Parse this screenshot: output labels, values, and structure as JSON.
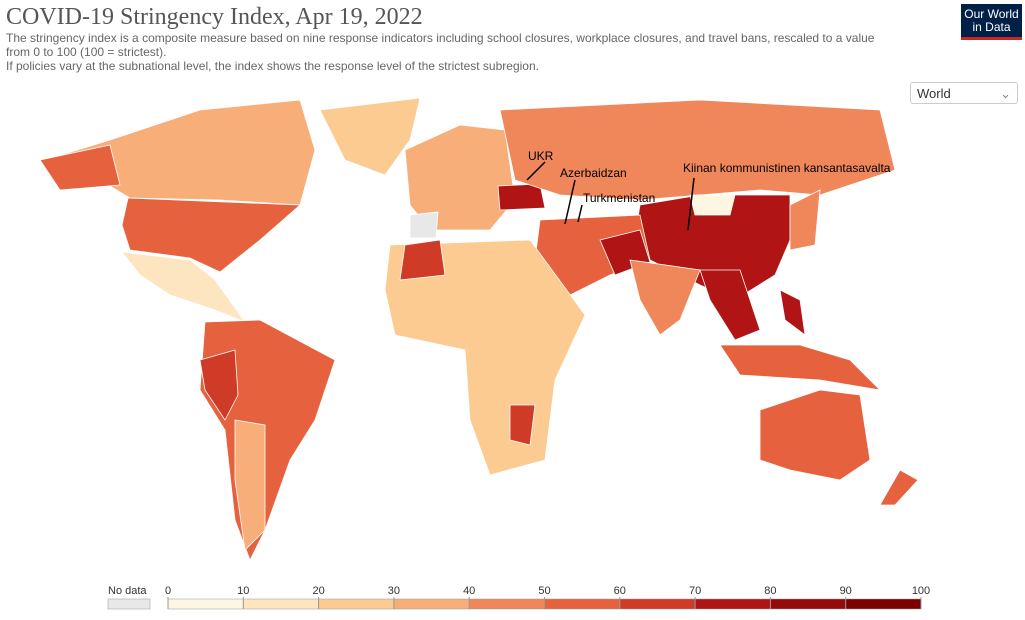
{
  "header": {
    "title": "COVID-19 Stringency Index, Apr 19, 2022",
    "subtitle": [
      "The stringency index is a composite measure based on nine response indicators including school closures, workplace closures, and travel bans, rescaled to a value",
      "from 0 to 100 (100 = strictest).",
      "If policies vary at the subnational level, the index shows the response level of the strictest subregion."
    ],
    "logo": [
      "Our World",
      "in Data"
    ]
  },
  "controls": {
    "region": "World"
  },
  "map": {
    "annotations": [
      "UKR",
      "Azerbaidzan",
      "Turkmenistan",
      "Kiinan kommunistinen kansantasavalta"
    ]
  },
  "legend": {
    "no_data_label": "No data",
    "no_data_color": "#e8e8e8",
    "ticks": [
      0,
      10,
      20,
      30,
      40,
      50,
      60,
      70,
      80,
      90,
      100
    ],
    "colors": [
      "#fef6e2",
      "#fde5bf",
      "#fbcb92",
      "#f8ae79",
      "#f0875b",
      "#e6623e",
      "#cf3b26",
      "#b01414",
      "#950b0b",
      "#7c0000"
    ]
  }
}
